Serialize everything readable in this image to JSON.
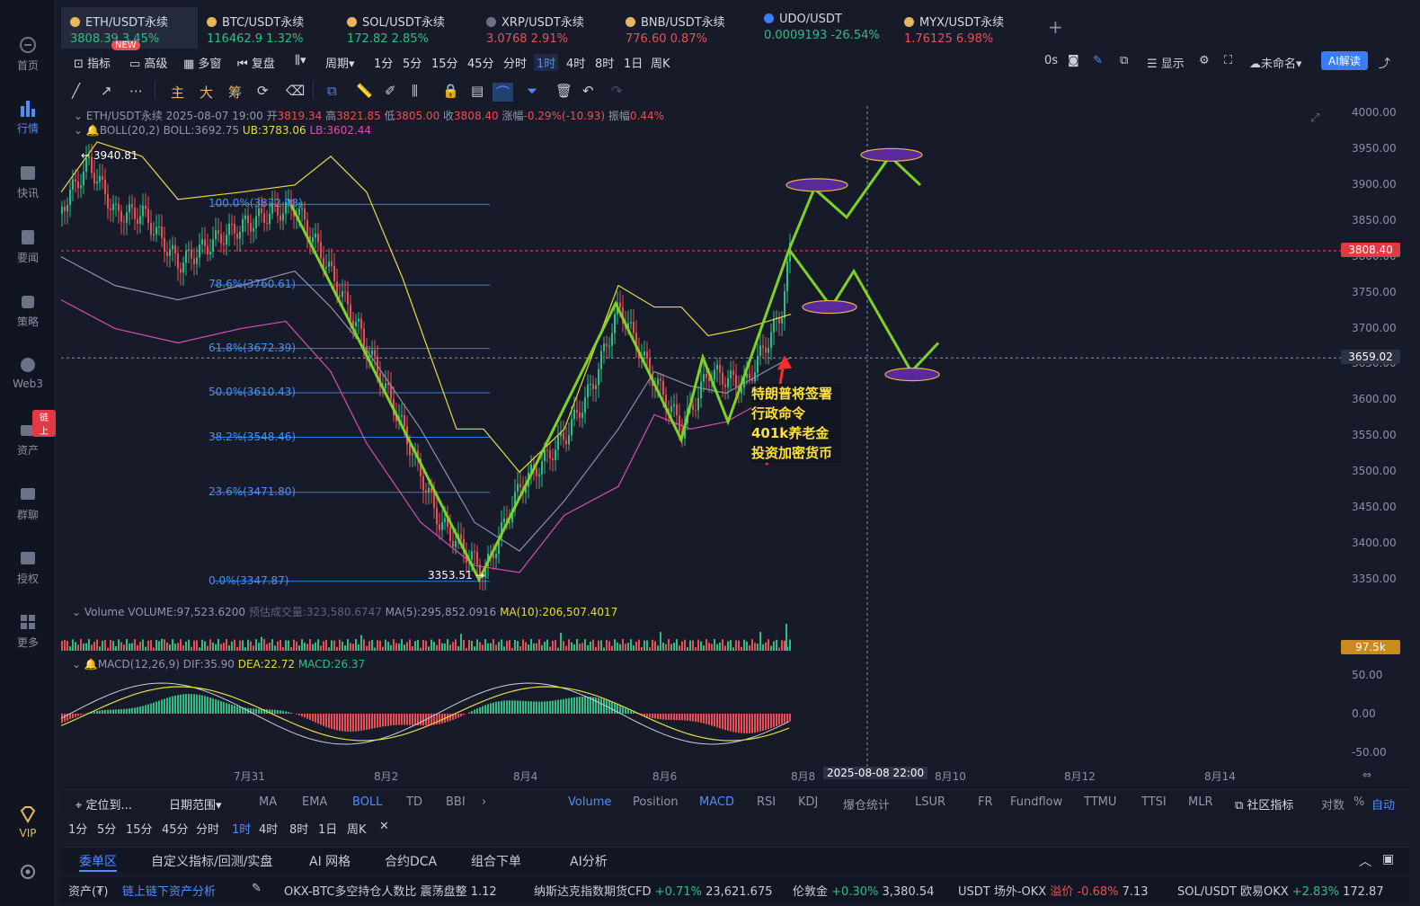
{
  "sidebar": {
    "items": [
      {
        "label": "首页",
        "icon": "home-icon"
      },
      {
        "label": "行情",
        "icon": "market-icon"
      },
      {
        "label": "快讯",
        "icon": "news-icon"
      },
      {
        "label": "要闻",
        "icon": "headline-icon"
      },
      {
        "label": "策略",
        "icon": "strategy-icon"
      },
      {
        "label": "Web3",
        "icon": "web3-icon"
      },
      {
        "label": "资产",
        "icon": "wallet-icon",
        "badge": "链上"
      },
      {
        "label": "群聊",
        "icon": "chat-icon"
      },
      {
        "label": "授权",
        "icon": "auth-icon"
      },
      {
        "label": "更多",
        "icon": "more-grid-icon"
      }
    ],
    "vip": "VIP"
  },
  "tabs": [
    {
      "name": "ETH/USDT永续",
      "price": "3808.39",
      "change": "3.45%",
      "dir": "up",
      "badge": "NEW"
    },
    {
      "name": "BTC/USDT永续",
      "price": "116462.9",
      "change": "1.32%",
      "dir": "up"
    },
    {
      "name": "SOL/USDT永续",
      "price": "172.82",
      "change": "2.85%",
      "dir": "up"
    },
    {
      "name": "XRP/USDT永续",
      "price": "3.0768",
      "change": "2.91%",
      "dir": "dn"
    },
    {
      "name": "BNB/USDT永续",
      "price": "776.60",
      "change": "0.87%",
      "dir": "dn"
    },
    {
      "name": "UDO/USDT",
      "price": "0.0009193",
      "change": "-26.54%",
      "dir": "up"
    },
    {
      "name": "MYX/USDT永续",
      "price": "1.76125",
      "change": "6.98%",
      "dir": "dn"
    }
  ],
  "toolbar": {
    "indicator": "指标",
    "advanced": "高级",
    "multi": "多窗",
    "replay": "复盘",
    "period": "周期",
    "intervals": [
      "1分",
      "5分",
      "15分",
      "45分",
      "分时",
      "1时",
      "4时",
      "8时",
      "1日",
      "周K"
    ],
    "active_interval": "1时",
    "countdown": "0s",
    "display": "显示",
    "unnamed": "未命名",
    "ai": "AI解读"
  },
  "drawing_tools": [
    "主",
    "大",
    "筹"
  ],
  "chart_info": {
    "symbol": "ETH/USDT永续",
    "datetime": "2025-08-07 19:00",
    "open_label": "开",
    "open": "3819.34",
    "high_label": "高",
    "high": "3821.85",
    "low_label": "低",
    "low": "3805.00",
    "close_label": "收",
    "close": "3808.40",
    "chg_label": "涨幅",
    "chg": "-0.29%(-10.93)",
    "amp_label": "振幅",
    "amp": "0.44%",
    "boll": "BOLL(20,2)",
    "boll_mid": "BOLL:3692.75",
    "boll_ub": "UB:3783.06",
    "boll_lb": "LB:3602.44",
    "high_mark": "← 3940.81",
    "low_mark": "3353.51 →",
    "volume": "Volume",
    "vol_value": "VOLUME:97,523.6200",
    "vol_est": "预估成交量:323,580.6747",
    "vol_ma5": "MA(5):295,852.0916",
    "vol_ma10": "MA(10):206,507.4017",
    "macd": "MACD(12,26,9)",
    "dif": "DIF:35.90",
    "dea": "DEA:22.72",
    "macd_val": "MACD:26.37"
  },
  "fib_levels": [
    {
      "label": "100.0%(3872.98)",
      "price": 3872.98
    },
    {
      "label": "78.6%(3760.61)",
      "price": 3760.61
    },
    {
      "label": "61.8%(3672.39)",
      "price": 3672.39
    },
    {
      "label": "50.0%(3610.43)",
      "price": 3610.43
    },
    {
      "label": "38.2%(3548.46)",
      "price": 3548.46
    },
    {
      "label": "23.6%(3471.80)",
      "price": 3471.8
    },
    {
      "label": "0.0%(3347.87)",
      "price": 3347.87
    }
  ],
  "annotation": "特朗普将签署行政命令401k养老金投资加密货币",
  "y_axis": {
    "ticks": [
      "4000.00",
      "3950.00",
      "3900.00",
      "3850.00",
      "3800.00",
      "3750.00",
      "3700.00",
      "3650.00",
      "3600.00",
      "3550.00",
      "3500.00",
      "3450.00",
      "3400.00",
      "3350.00"
    ],
    "current_price": "3808.40",
    "crosshair_price": "3659.02",
    "vol_label": "97.5k",
    "macd_ticks": [
      "50.00",
      "0.00",
      "-50.00"
    ]
  },
  "x_axis": {
    "ticks": [
      "7月31",
      "8月2",
      "8月4",
      "8月6",
      "8月8",
      "8月10",
      "8月12",
      "8月14"
    ],
    "crosshair_time": "2025-08-08 22:00"
  },
  "bottom_indicators": {
    "locate": "定位到...",
    "range": "日期范围",
    "main": [
      "MA",
      "EMA",
      "BOLL",
      "TD",
      "BBI"
    ],
    "sub": [
      "Volume",
      "Position",
      "MACD",
      "RSI",
      "KDJ",
      "爆仓统计",
      "LSUR",
      "FR",
      "Fundflow",
      "TTMU",
      "TTSI",
      "MLR"
    ],
    "community": "社区指标",
    "log": "对数",
    "pct": "%",
    "auto": "自动"
  },
  "tf_row": [
    "1分",
    "5分",
    "15分",
    "45分",
    "分时",
    "1时",
    "4时",
    "8时",
    "1日",
    "周K"
  ],
  "panel_tabs": [
    "委单区",
    "自定义指标/回测/实盘",
    "AI 网格",
    "合约DCA",
    "组合下单",
    "AI分析"
  ],
  "ticker": [
    {
      "t": "资产(₮)"
    },
    {
      "t": "链上链下资产分析"
    },
    {
      "t": "OKX-BTC多空持仓人数比",
      "s": "震荡盘整",
      "v": "1.12"
    },
    {
      "t": "纳斯达克指数期货CFD",
      "s": "+0.71%",
      "v": "23,621.675"
    },
    {
      "t": "伦敦金",
      "s": "+0.30%",
      "v": "3,380.54"
    },
    {
      "t": "USDT 场外-OKX",
      "s": "溢价 -0.68%",
      "v": "7.13"
    },
    {
      "t": "SOL/USDT 欧易OKX",
      "s": "+2.83%",
      "v": "172.87"
    }
  ],
  "colors": {
    "up": "#2ebd85",
    "down": "#e84f55",
    "accent": "#4f8df9",
    "projection": "#7ed321",
    "boll_up": "#e6dc3a",
    "boll_low": "#d94bb5"
  }
}
